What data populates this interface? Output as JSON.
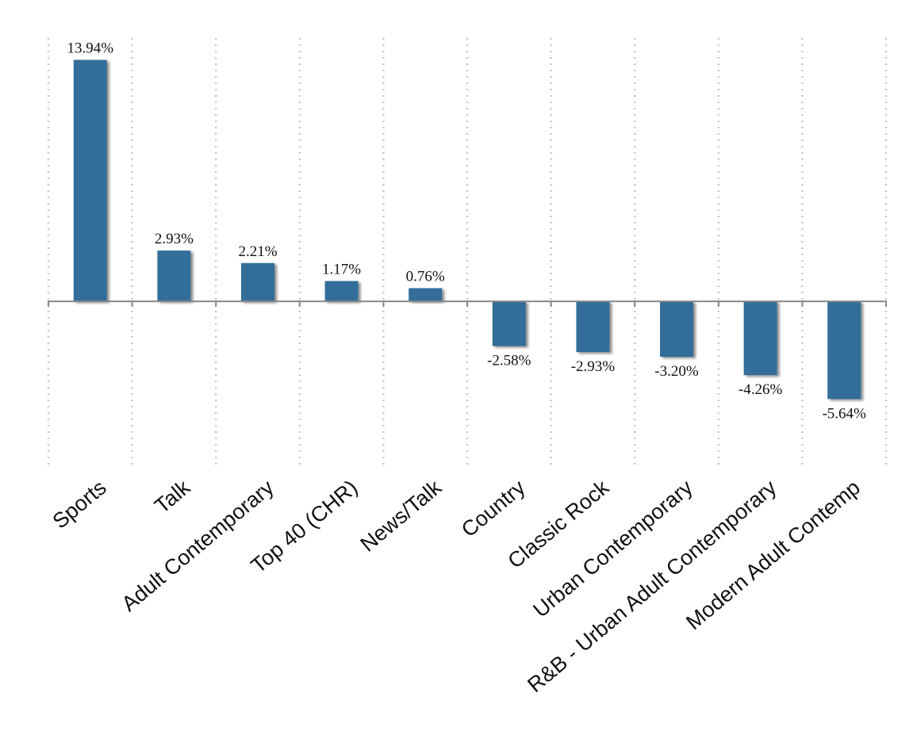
{
  "chart_data": {
    "type": "bar",
    "title": "",
    "xlabel": "",
    "ylabel": "",
    "categories": [
      "Sports",
      "Talk",
      "Adult Contemporary",
      "Top 40 (CHR)",
      "News/Talk",
      "Country",
      "Classic Rock",
      "Urban Contemporary",
      "R&B - Urban Adult Contemporary",
      "Modern Adult Contemp"
    ],
    "values": [
      13.94,
      2.93,
      2.21,
      1.17,
      0.76,
      -2.58,
      -2.93,
      -3.2,
      -4.26,
      -5.64
    ],
    "data_labels": [
      "13.94%",
      "2.93%",
      "2.21%",
      "1.17%",
      "0.76%",
      "-2.58%",
      "-2.93%",
      "-3.20%",
      "-4.26%",
      "-5.64%"
    ],
    "ylim": [
      -9.7,
      15.2
    ],
    "grid": "vertical dotted",
    "legend": "none",
    "bar_color": "#336e99"
  }
}
